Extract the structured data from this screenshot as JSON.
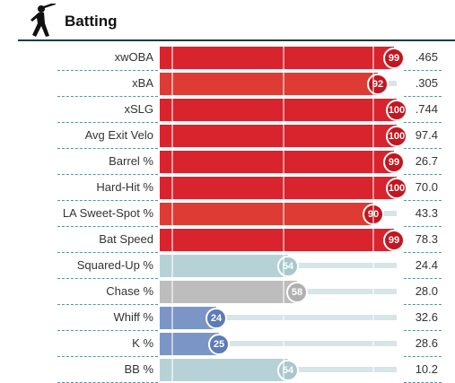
{
  "section": {
    "title": "Batting",
    "icon": "batter-silhouette-icon"
  },
  "colors": {
    "elite_red": "#d9232d",
    "high_red": "#dd3b34",
    "average_teal": "#b7d2d6",
    "gray": "#bdbdbd",
    "below_blue": "#7b96c6",
    "track": "#d6e5e7",
    "divider": "#5f8f9b"
  },
  "rows": [
    {
      "label": "xwOBA",
      "percentile": 99,
      "value": ".465",
      "color": "#d9232d"
    },
    {
      "label": "xBA",
      "percentile": 92,
      "value": ".305",
      "color": "#dd3b34"
    },
    {
      "label": "xSLG",
      "percentile": 100,
      "value": ".744",
      "color": "#d9232d"
    },
    {
      "label": "Avg Exit Velo",
      "percentile": 100,
      "value": "97.4",
      "color": "#d9232d"
    },
    {
      "label": "Barrel %",
      "percentile": 99,
      "value": "26.7",
      "color": "#d9232d"
    },
    {
      "label": "Hard-Hit %",
      "percentile": 100,
      "value": "70.0",
      "color": "#d9232d"
    },
    {
      "label": "LA Sweet-Spot %",
      "percentile": 90,
      "value": "43.3",
      "color": "#dd3b34"
    },
    {
      "label": "Bat Speed",
      "percentile": 99,
      "value": "78.3",
      "color": "#d9232d"
    },
    {
      "label": "Squared-Up %",
      "percentile": 54,
      "value": "24.4",
      "color": "#b7d2d6"
    },
    {
      "label": "Chase %",
      "percentile": 58,
      "value": "28.0",
      "color": "#bdbdbd"
    },
    {
      "label": "Whiff %",
      "percentile": 24,
      "value": "32.6",
      "color": "#7b96c6"
    },
    {
      "label": "K %",
      "percentile": 25,
      "value": "28.6",
      "color": "#7b96c6"
    },
    {
      "label": "BB %",
      "percentile": 54,
      "value": "10.2",
      "color": "#b7d2d6"
    }
  ]
}
